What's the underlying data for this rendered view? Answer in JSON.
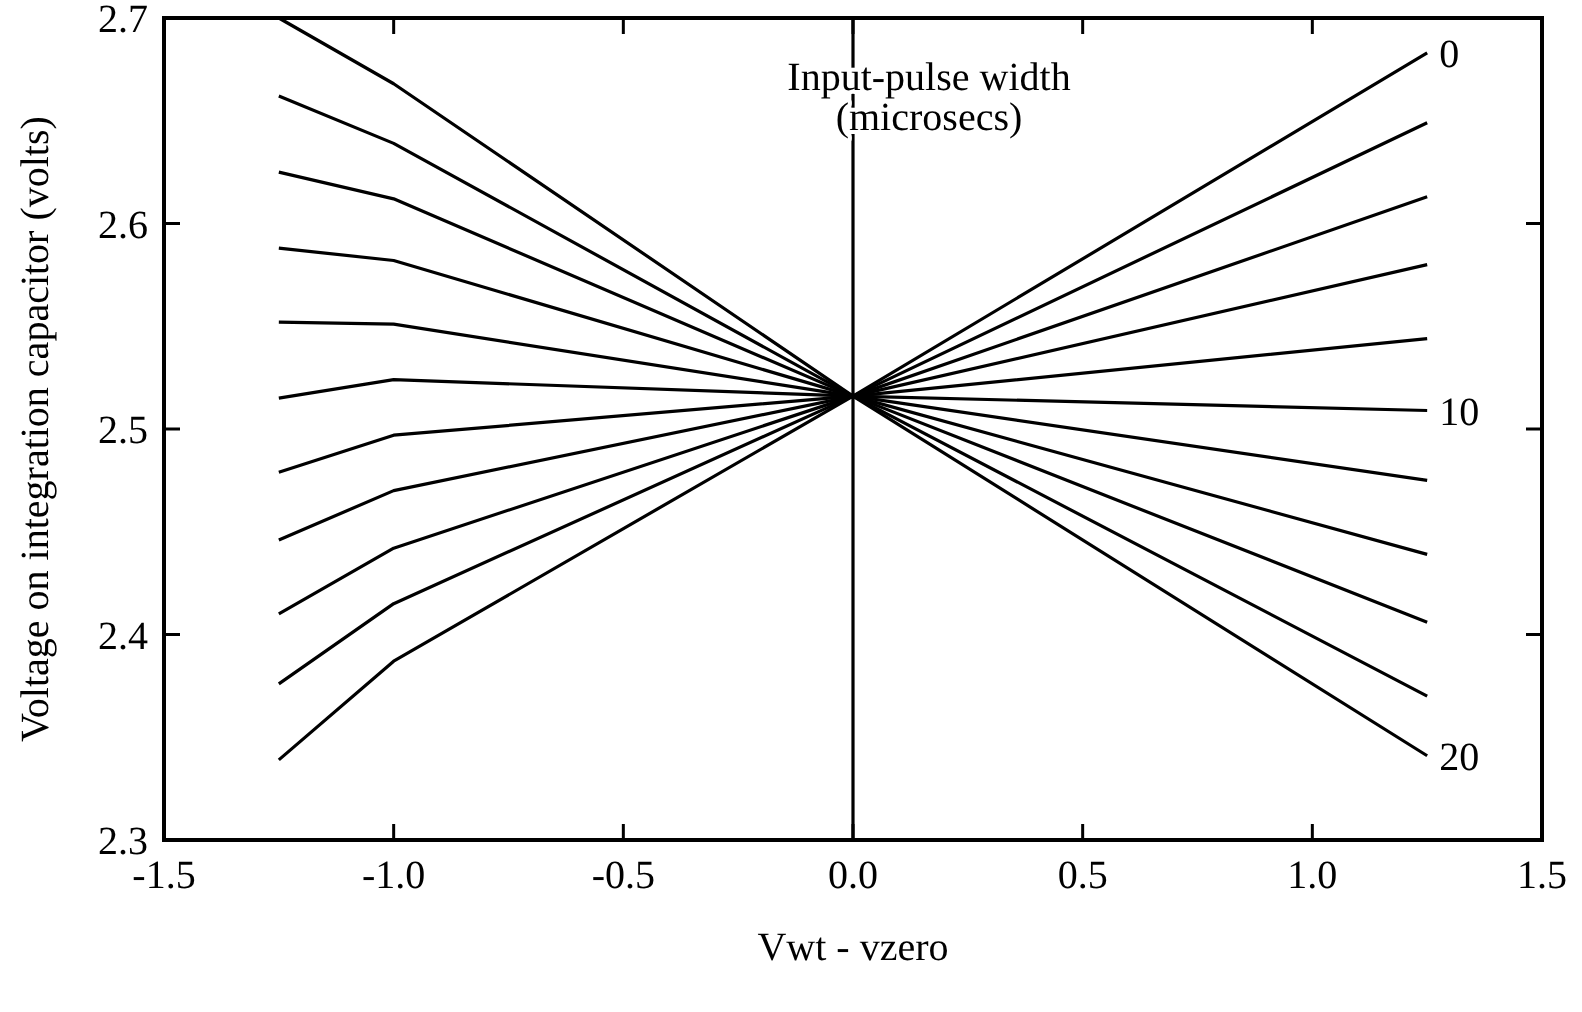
{
  "chart_data": {
    "type": "line",
    "xlabel": "Vwt - vzero",
    "ylabel": "Voltage on integration capacitor (volts)",
    "x": [
      -1.25,
      -1.0,
      0.0,
      1.25
    ],
    "series": [
      {
        "name": "0",
        "color": "#000000",
        "values": [
          2.7,
          2.668,
          2.516,
          2.683
        ]
      },
      {
        "color": "#000000",
        "values": [
          2.662,
          2.639,
          2.516,
          2.649
        ]
      },
      {
        "color": "#000000",
        "values": [
          2.625,
          2.612,
          2.516,
          2.613
        ]
      },
      {
        "color": "#000000",
        "values": [
          2.588,
          2.582,
          2.516,
          2.58
        ]
      },
      {
        "color": "#000000",
        "values": [
          2.552,
          2.551,
          2.516,
          2.544
        ]
      },
      {
        "name": "10",
        "color": "#000000",
        "values": [
          2.515,
          2.524,
          2.516,
          2.509
        ]
      },
      {
        "color": "#000000",
        "values": [
          2.479,
          2.497,
          2.516,
          2.475
        ]
      },
      {
        "color": "#000000",
        "values": [
          2.446,
          2.47,
          2.516,
          2.439
        ]
      },
      {
        "color": "#000000",
        "values": [
          2.41,
          2.442,
          2.516,
          2.406
        ]
      },
      {
        "color": "#000000",
        "values": [
          2.376,
          2.415,
          2.516,
          2.37
        ]
      },
      {
        "name": "20",
        "color": "#000000",
        "values": [
          2.339,
          2.387,
          2.516,
          2.341
        ]
      }
    ],
    "xlim": [
      -1.5,
      1.5
    ],
    "xticks": [
      {
        "value": -1.5,
        "label": "-1.5"
      },
      {
        "value": -1,
        "label": "-1.0"
      },
      {
        "value": -0.5,
        "label": "-0.5"
      },
      {
        "value": 0,
        "label": "0.0"
      },
      {
        "value": 0.5,
        "label": "0.5"
      },
      {
        "value": 1,
        "label": "1.0"
      },
      {
        "value": 1.5,
        "label": "1.5"
      }
    ],
    "ylim": [
      2.3,
      2.7
    ],
    "yticks": [
      2.3,
      2.4,
      2.5,
      2.6,
      2.7
    ],
    "ref_lines": [
      {
        "axis": "x",
        "value": 0,
        "color": "#000000"
      }
    ],
    "annotations": [
      "Input-pulse width\n(microsecs)"
    ],
    "grid": false,
    "marker": "none",
    "line_style": "solid"
  }
}
